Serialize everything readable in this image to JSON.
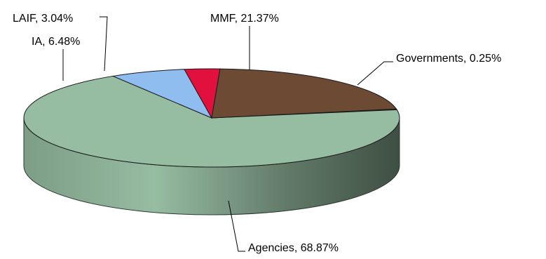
{
  "chart_data": {
    "type": "pie",
    "three_d": true,
    "title": "",
    "legend": "none",
    "slices": [
      {
        "label": "Governments, 0.25%",
        "name": "Governments",
        "value": 0.25,
        "color": "#8a6440"
      },
      {
        "label": "Agencies, 68.87%",
        "name": "Agencies",
        "value": 68.87,
        "color": "#96bca2"
      },
      {
        "label": "IA, 6.48%",
        "name": "IA",
        "value": 6.48,
        "color": "#8fbdf0"
      },
      {
        "label": "LAIF, 3.04%",
        "name": "LAIF",
        "value": 3.04,
        "color": "#e2103c"
      },
      {
        "label": "MMF, 21.37%",
        "name": "MMF",
        "value": 21.37,
        "color": "#6c4a34"
      }
    ],
    "start_angle_deg": 10.5,
    "direction": "clockwise"
  }
}
